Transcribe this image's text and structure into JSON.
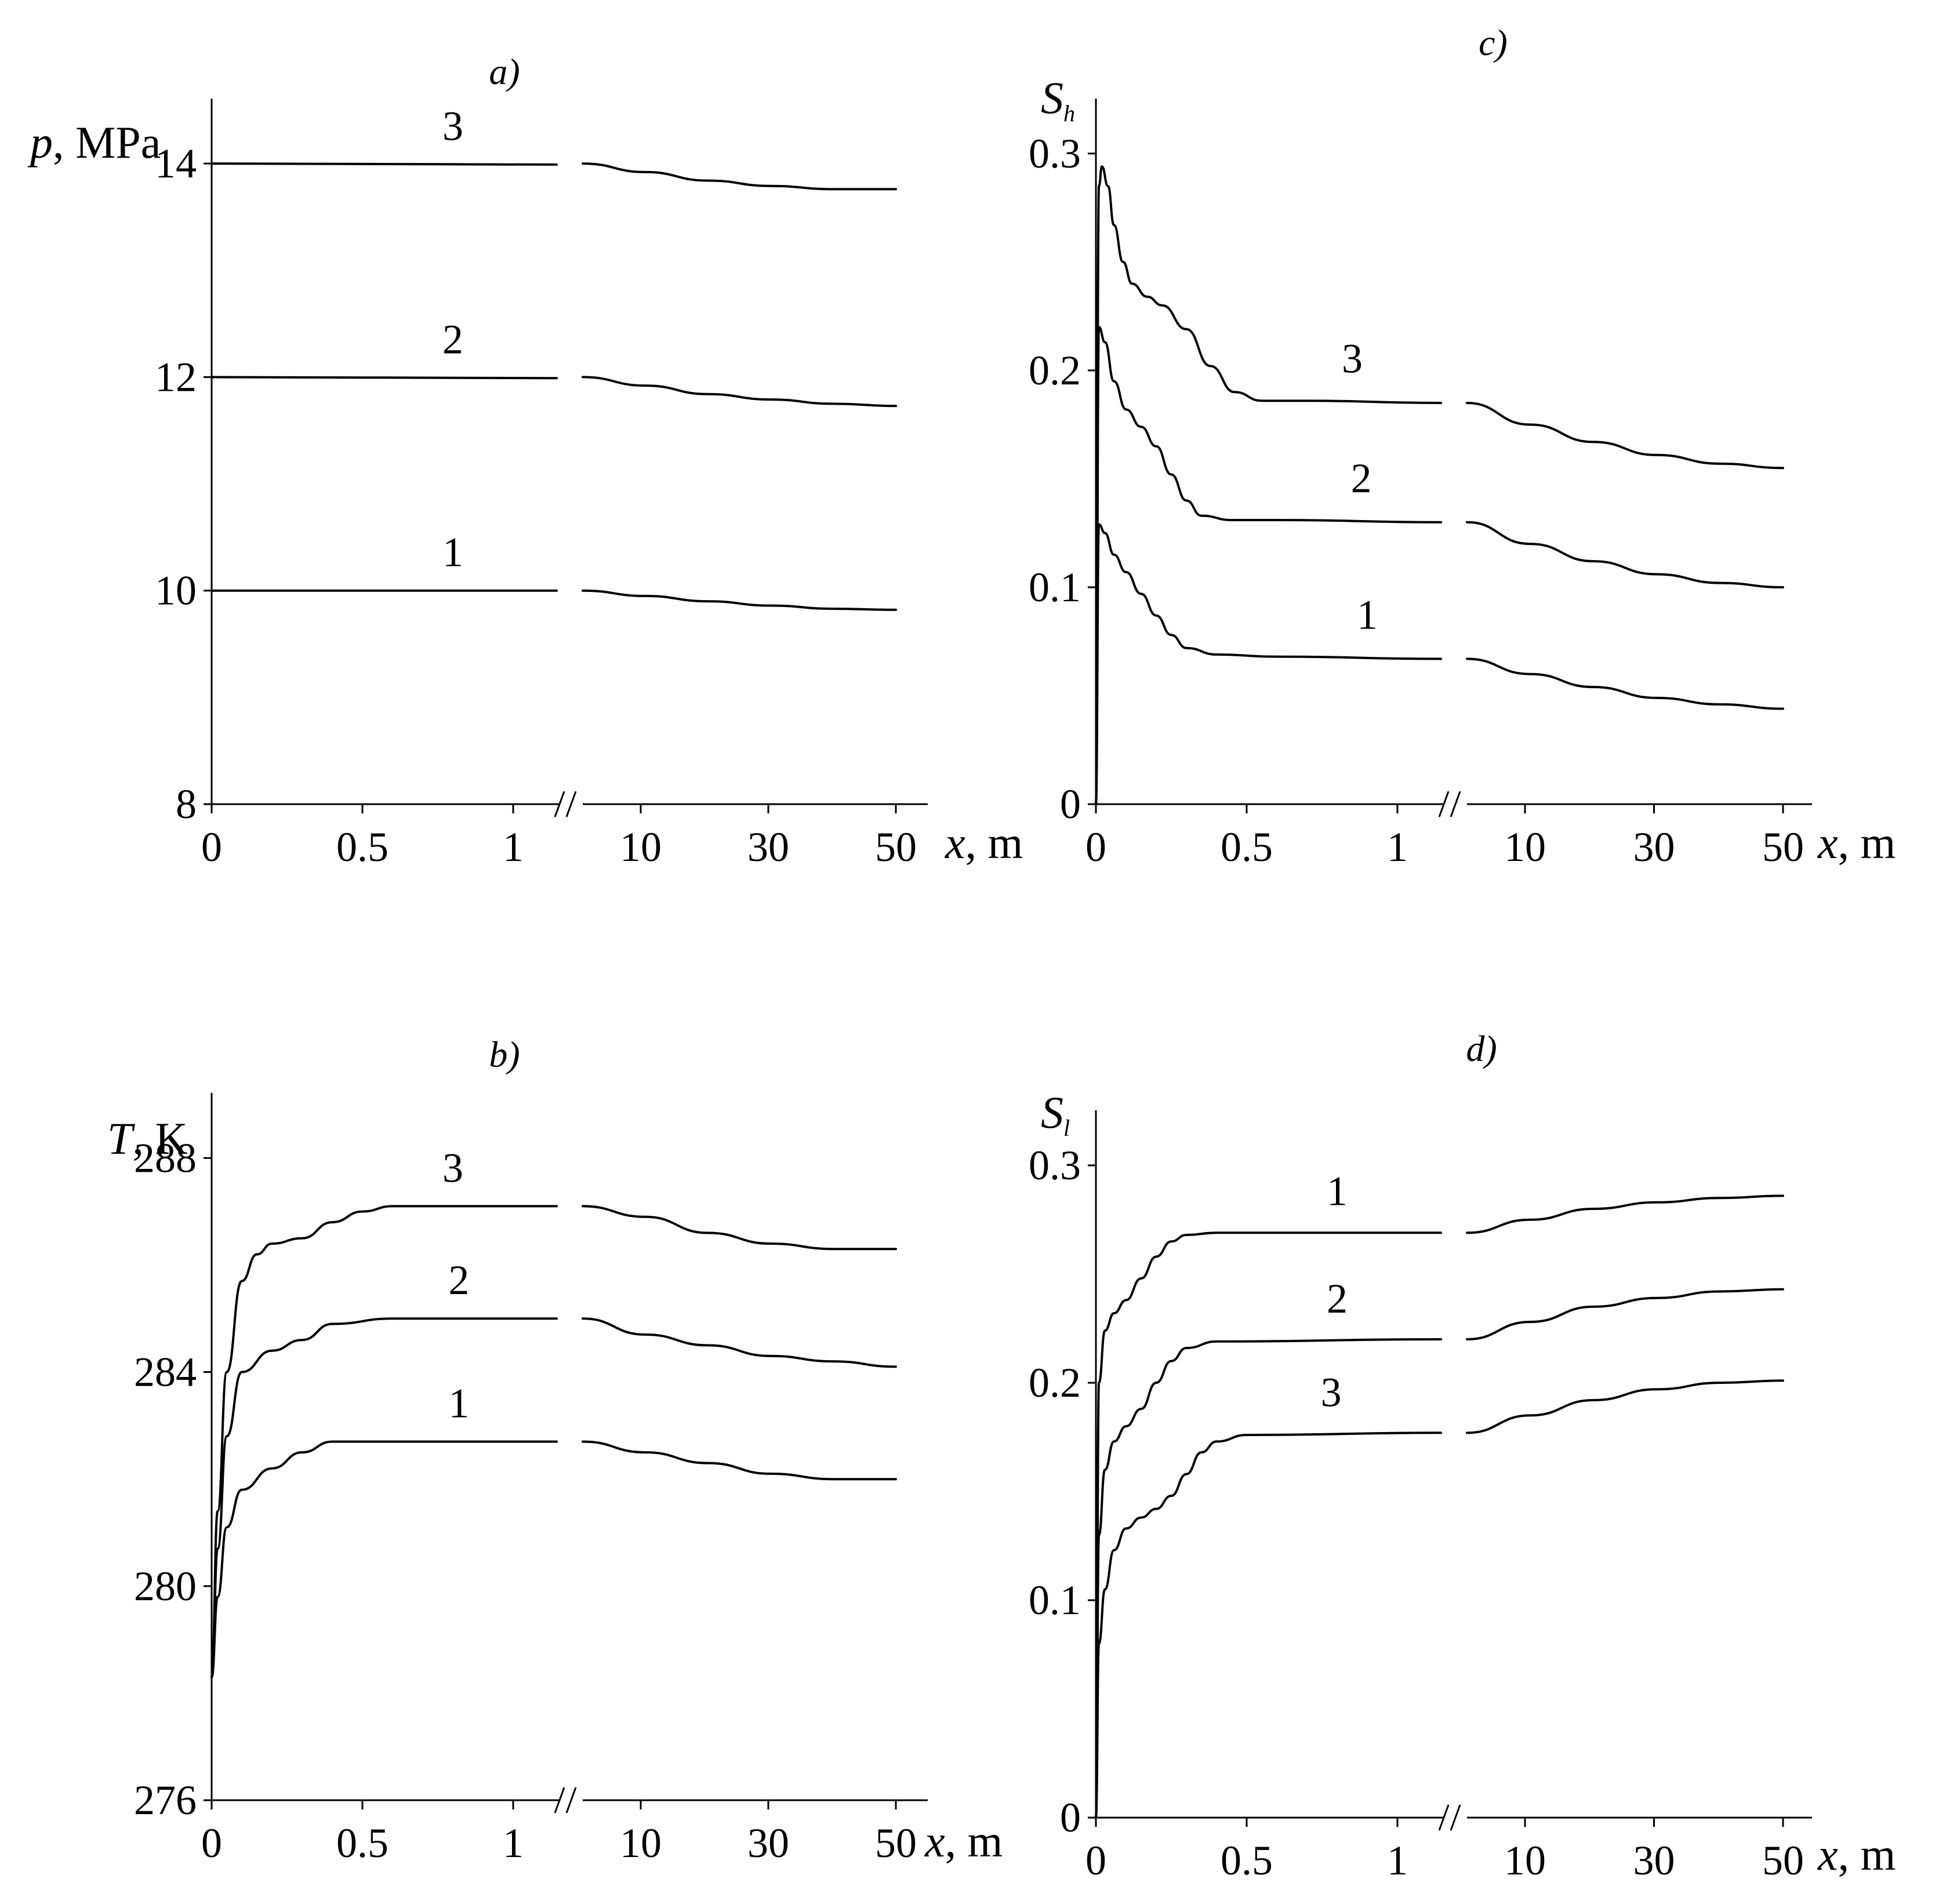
{
  "chart_data": [
    {
      "id": "a",
      "type": "line",
      "panel_label": "a)",
      "ylabel_var": "p",
      "ylabel_unit": ", MPa",
      "xlabel_var": "x",
      "xlabel_unit": ", m",
      "ylim": [
        8,
        14.5
      ],
      "yticks": [
        8,
        10,
        12,
        14
      ],
      "ytick_labels": [
        "8",
        "10",
        "12",
        "14"
      ],
      "x_near": [
        0,
        0.5,
        1
      ],
      "x_near_labels": [
        "0",
        "0.5",
        "1"
      ],
      "x_far": [
        10,
        30,
        50
      ],
      "x_far_labels": [
        "10",
        "30",
        "50"
      ],
      "series": [
        {
          "name": "1",
          "label_at": 0.8,
          "near": [
            [
              0,
              10
            ],
            [
              1.15,
              10
            ]
          ],
          "far": [
            [
              0,
              10.0
            ],
            [
              10,
              9.95
            ],
            [
              20,
              9.9
            ],
            [
              30,
              9.86
            ],
            [
              40,
              9.83
            ],
            [
              50,
              9.82
            ]
          ]
        },
        {
          "name": "2",
          "label_at": 0.8,
          "near": [
            [
              0,
              12
            ],
            [
              1.15,
              11.99
            ]
          ],
          "far": [
            [
              0,
              12.0
            ],
            [
              10,
              11.92
            ],
            [
              20,
              11.84
            ],
            [
              30,
              11.79
            ],
            [
              40,
              11.75
            ],
            [
              50,
              11.73
            ]
          ]
        },
        {
          "name": "3",
          "label_at": 0.8,
          "near": [
            [
              0,
              14
            ],
            [
              1.15,
              13.99
            ]
          ],
          "far": [
            [
              0,
              14.0
            ],
            [
              10,
              13.92
            ],
            [
              20,
              13.84
            ],
            [
              30,
              13.79
            ],
            [
              40,
              13.76
            ],
            [
              50,
              13.76
            ]
          ]
        }
      ]
    },
    {
      "id": "b",
      "type": "line",
      "panel_label": "b)",
      "ylabel_var": "T",
      "ylabel_unit": ", K",
      "xlabel_var": "x",
      "xlabel_unit": ", m",
      "ylim": [
        276,
        289
      ],
      "yticks": [
        276,
        280,
        284,
        288
      ],
      "ytick_labels": [
        "276",
        "280",
        "284",
        "288"
      ],
      "x_near": [
        0,
        0.5,
        1
      ],
      "x_near_labels": [
        "0",
        "0.5",
        "1"
      ],
      "x_far": [
        10,
        30,
        50
      ],
      "x_far_labels": [
        "10",
        "30",
        "50"
      ],
      "series": [
        {
          "name": "1",
          "label_at": 0.82,
          "near": [
            [
              0,
              278.3
            ],
            [
              0.02,
              279.8
            ],
            [
              0.05,
              281.1
            ],
            [
              0.1,
              281.8
            ],
            [
              0.2,
              282.2
            ],
            [
              0.3,
              282.5
            ],
            [
              0.4,
              282.7
            ],
            [
              0.6,
              282.7
            ],
            [
              1.15,
              282.7
            ]
          ],
          "far": [
            [
              0,
              282.7
            ],
            [
              10,
              282.5
            ],
            [
              20,
              282.3
            ],
            [
              30,
              282.1
            ],
            [
              40,
              282.0
            ],
            [
              50,
              282.0
            ]
          ]
        },
        {
          "name": "2",
          "label_at": 0.82,
          "near": [
            [
              0,
              278.3
            ],
            [
              0.02,
              280.7
            ],
            [
              0.05,
              282.8
            ],
            [
              0.1,
              284.0
            ],
            [
              0.2,
              284.4
            ],
            [
              0.3,
              284.6
            ],
            [
              0.4,
              284.9
            ],
            [
              0.6,
              285.0
            ],
            [
              1.15,
              285.0
            ]
          ],
          "far": [
            [
              0,
              285.0
            ],
            [
              10,
              284.7
            ],
            [
              20,
              284.5
            ],
            [
              30,
              284.3
            ],
            [
              40,
              284.2
            ],
            [
              50,
              284.1
            ]
          ]
        },
        {
          "name": "3",
          "label_at": 0.8,
          "near": [
            [
              0,
              278.3
            ],
            [
              0.02,
              281.4
            ],
            [
              0.05,
              284.0
            ],
            [
              0.1,
              285.7
            ],
            [
              0.15,
              286.2
            ],
            [
              0.2,
              286.4
            ],
            [
              0.3,
              286.5
            ],
            [
              0.4,
              286.8
            ],
            [
              0.5,
              287.0
            ],
            [
              0.6,
              287.1
            ],
            [
              1.15,
              287.1
            ]
          ],
          "far": [
            [
              0,
              287.1
            ],
            [
              10,
              286.9
            ],
            [
              20,
              286.6
            ],
            [
              30,
              286.4
            ],
            [
              40,
              286.3
            ],
            [
              50,
              286.3
            ]
          ]
        }
      ]
    },
    {
      "id": "c",
      "type": "line",
      "panel_label": "c)",
      "ylabel_var": "S",
      "ylabel_sub": "h",
      "xlabel_var": "x",
      "xlabel_unit": ", m",
      "ylim": [
        0,
        0.32
      ],
      "yticks": [
        0,
        0.1,
        0.2,
        0.3
      ],
      "ytick_labels": [
        "0",
        "0.1",
        "0.2",
        "0.3"
      ],
      "x_near": [
        0,
        0.5,
        1
      ],
      "x_near_labels": [
        "0",
        "0.5",
        "1"
      ],
      "x_far": [
        10,
        30,
        50
      ],
      "x_far_labels": [
        "10",
        "30",
        "50"
      ],
      "series": [
        {
          "name": "1",
          "label_at": 0.9,
          "near": [
            [
              0,
              0.0
            ],
            [
              0.01,
              0.129
            ],
            [
              0.03,
              0.125
            ],
            [
              0.06,
              0.115
            ],
            [
              0.1,
              0.107
            ],
            [
              0.15,
              0.097
            ],
            [
              0.2,
              0.087
            ],
            [
              0.25,
              0.078
            ],
            [
              0.3,
              0.072
            ],
            [
              0.4,
              0.069
            ],
            [
              0.6,
              0.068
            ],
            [
              1.15,
              0.067
            ]
          ],
          "far": [
            [
              0,
              0.067
            ],
            [
              10,
              0.06
            ],
            [
              20,
              0.054
            ],
            [
              30,
              0.049
            ],
            [
              40,
              0.046
            ],
            [
              50,
              0.044
            ]
          ]
        },
        {
          "name": "2",
          "label_at": 0.88,
          "near": [
            [
              0,
              0.0
            ],
            [
              0.01,
              0.22
            ],
            [
              0.03,
              0.213
            ],
            [
              0.06,
              0.195
            ],
            [
              0.1,
              0.182
            ],
            [
              0.15,
              0.174
            ],
            [
              0.2,
              0.165
            ],
            [
              0.25,
              0.152
            ],
            [
              0.3,
              0.14
            ],
            [
              0.35,
              0.133
            ],
            [
              0.45,
              0.131
            ],
            [
              0.6,
              0.131
            ],
            [
              1.15,
              0.13
            ]
          ],
          "far": [
            [
              0,
              0.13
            ],
            [
              10,
              0.12
            ],
            [
              20,
              0.112
            ],
            [
              30,
              0.106
            ],
            [
              40,
              0.102
            ],
            [
              50,
              0.1
            ]
          ]
        },
        {
          "name": "3",
          "label_at": 0.85,
          "near": [
            [
              0,
              0.0
            ],
            [
              0.01,
              0.285
            ],
            [
              0.02,
              0.294
            ],
            [
              0.04,
              0.285
            ],
            [
              0.06,
              0.267
            ],
            [
              0.09,
              0.25
            ],
            [
              0.12,
              0.24
            ],
            [
              0.17,
              0.234
            ],
            [
              0.22,
              0.23
            ],
            [
              0.3,
              0.219
            ],
            [
              0.38,
              0.202
            ],
            [
              0.46,
              0.19
            ],
            [
              0.55,
              0.186
            ],
            [
              0.7,
              0.186
            ],
            [
              1.15,
              0.185
            ]
          ],
          "far": [
            [
              0,
              0.185
            ],
            [
              10,
              0.175
            ],
            [
              20,
              0.167
            ],
            [
              30,
              0.161
            ],
            [
              40,
              0.157
            ],
            [
              50,
              0.155
            ]
          ]
        }
      ]
    },
    {
      "id": "d",
      "type": "line",
      "panel_label": "d)",
      "ylabel_var": "S",
      "ylabel_sub": "l",
      "xlabel_var": "x",
      "xlabel_unit": ", m",
      "ylim": [
        0,
        0.32
      ],
      "yticks": [
        0,
        0.1,
        0.2,
        0.3
      ],
      "ytick_labels": [
        "0",
        "0.1",
        "0.2",
        "0.3"
      ],
      "x_near": [
        0,
        0.5,
        1
      ],
      "x_near_labels": [
        "0",
        "0.5",
        "1"
      ],
      "x_far": [
        10,
        30,
        50
      ],
      "x_far_labels": [
        "10",
        "30",
        "50"
      ],
      "series": [
        {
          "name": "1",
          "label_at": 0.8,
          "near": [
            [
              0,
              0.0
            ],
            [
              0.01,
              0.2
            ],
            [
              0.03,
              0.224
            ],
            [
              0.06,
              0.232
            ],
            [
              0.1,
              0.238
            ],
            [
              0.15,
              0.248
            ],
            [
              0.2,
              0.258
            ],
            [
              0.25,
              0.265
            ],
            [
              0.3,
              0.268
            ],
            [
              0.4,
              0.269
            ],
            [
              1.15,
              0.269
            ]
          ],
          "far": [
            [
              0,
              0.269
            ],
            [
              10,
              0.275
            ],
            [
              20,
              0.28
            ],
            [
              30,
              0.283
            ],
            [
              40,
              0.285
            ],
            [
              50,
              0.286
            ]
          ]
        },
        {
          "name": "2",
          "label_at": 0.8,
          "near": [
            [
              0,
              0.0
            ],
            [
              0.01,
              0.13
            ],
            [
              0.03,
              0.16
            ],
            [
              0.06,
              0.173
            ],
            [
              0.1,
              0.18
            ],
            [
              0.15,
              0.188
            ],
            [
              0.2,
              0.2
            ],
            [
              0.25,
              0.21
            ],
            [
              0.3,
              0.216
            ],
            [
              0.4,
              0.219
            ],
            [
              1.15,
              0.22
            ]
          ],
          "far": [
            [
              0,
              0.22
            ],
            [
              10,
              0.228
            ],
            [
              20,
              0.235
            ],
            [
              30,
              0.239
            ],
            [
              40,
              0.242
            ],
            [
              50,
              0.243
            ]
          ]
        },
        {
          "name": "3",
          "label_at": 0.78,
          "near": [
            [
              0,
              0.0
            ],
            [
              0.01,
              0.08
            ],
            [
              0.03,
              0.105
            ],
            [
              0.06,
              0.123
            ],
            [
              0.1,
              0.133
            ],
            [
              0.15,
              0.138
            ],
            [
              0.2,
              0.142
            ],
            [
              0.25,
              0.148
            ],
            [
              0.3,
              0.158
            ],
            [
              0.35,
              0.168
            ],
            [
              0.4,
              0.173
            ],
            [
              0.5,
              0.176
            ],
            [
              1.15,
              0.177
            ]
          ],
          "far": [
            [
              0,
              0.177
            ],
            [
              10,
              0.185
            ],
            [
              20,
              0.192
            ],
            [
              30,
              0.197
            ],
            [
              40,
              0.2
            ],
            [
              50,
              0.201
            ]
          ]
        }
      ]
    }
  ]
}
